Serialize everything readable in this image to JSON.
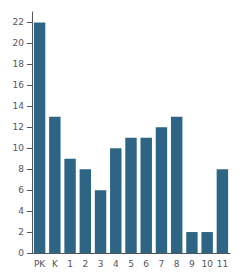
{
  "chart_data": {
    "type": "bar",
    "categories": [
      "PK",
      "K",
      "1",
      "2",
      "3",
      "4",
      "5",
      "6",
      "7",
      "8",
      "9",
      "10",
      "11"
    ],
    "values": [
      22,
      13,
      9,
      8,
      6,
      10,
      11,
      11,
      12,
      13,
      2,
      2,
      8
    ],
    "color": "#2e6585",
    "ylim": [
      0,
      23
    ],
    "yticks": [
      0,
      2,
      4,
      6,
      8,
      10,
      12,
      14,
      16,
      18,
      20,
      22
    ],
    "grid": false
  }
}
